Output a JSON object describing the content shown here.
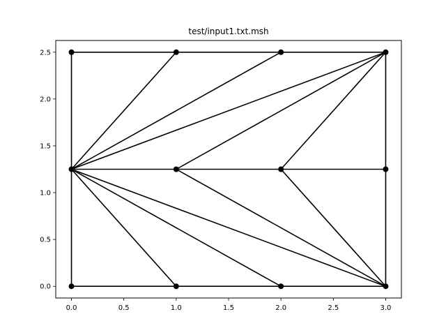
{
  "chart_data": {
    "type": "line",
    "title": "test/input1.txt.msh",
    "xlabel": "",
    "ylabel": "",
    "xlim": [
      -0.15,
      3.15
    ],
    "ylim": [
      -0.125,
      2.625
    ],
    "xticks": [
      0.0,
      0.5,
      1.0,
      1.5,
      2.0,
      2.5,
      3.0
    ],
    "xtick_labels": [
      "0.0",
      "0.5",
      "1.0",
      "1.5",
      "2.0",
      "2.5",
      "3.0"
    ],
    "yticks": [
      0.0,
      0.5,
      1.0,
      1.5,
      2.0,
      2.5
    ],
    "ytick_labels": [
      "0.0",
      "0.5",
      "1.0",
      "1.5",
      "2.0",
      "2.5"
    ],
    "grid": false,
    "line_color": "#000000",
    "nodes": [
      [
        0,
        0
      ],
      [
        1,
        0
      ],
      [
        2,
        0
      ],
      [
        3,
        0
      ],
      [
        0,
        1.25
      ],
      [
        1,
        1.25
      ],
      [
        2,
        1.25
      ],
      [
        3,
        1.25
      ],
      [
        0,
        2.5
      ],
      [
        1,
        2.5
      ],
      [
        2,
        2.5
      ],
      [
        3,
        2.5
      ]
    ],
    "edges": [
      [
        0,
        1
      ],
      [
        1,
        2
      ],
      [
        2,
        3
      ],
      [
        0,
        4
      ],
      [
        4,
        8
      ],
      [
        3,
        7
      ],
      [
        7,
        11
      ],
      [
        8,
        9
      ],
      [
        9,
        10
      ],
      [
        10,
        11
      ],
      [
        4,
        5
      ],
      [
        5,
        6
      ],
      [
        6,
        7
      ],
      [
        4,
        9
      ],
      [
        4,
        10
      ],
      [
        4,
        11
      ],
      [
        5,
        11
      ],
      [
        6,
        11
      ],
      [
        4,
        1
      ],
      [
        4,
        2
      ],
      [
        4,
        3
      ],
      [
        5,
        3
      ],
      [
        6,
        3
      ]
    ]
  }
}
